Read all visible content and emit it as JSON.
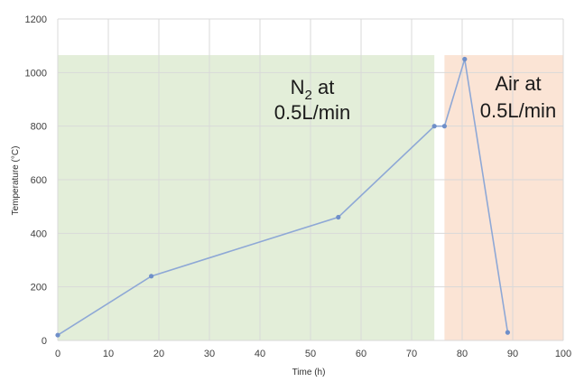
{
  "chart_data": {
    "type": "line",
    "title": "",
    "xlabel": "Time (h)",
    "ylabel": "Temperature (°C)",
    "xlim": [
      0,
      100
    ],
    "ylim": [
      0,
      1200
    ],
    "xticks": [
      0,
      10,
      20,
      30,
      40,
      50,
      60,
      70,
      80,
      90,
      100
    ],
    "yticks": [
      0,
      200,
      400,
      600,
      800,
      1000,
      1200
    ],
    "grid": true,
    "legend": "none",
    "colors": {
      "line": "#8ea8d6",
      "marker": "#6f8fc9",
      "n2_region": "#e3eed9",
      "air_region": "#fbe4d5",
      "grid": "#d9d9d9"
    },
    "series": [
      {
        "x": [
          0,
          18.5,
          55.5,
          74.5,
          76.5,
          80.5,
          89
        ],
        "y": [
          20,
          240,
          460,
          800,
          800,
          1050,
          30
        ]
      }
    ],
    "regions": [
      {
        "x_start": 0,
        "x_end": 74.5,
        "y_top": 1065,
        "color": "#e3eed9",
        "label_main": "N",
        "label_sub": "2",
        "label_rest": " at",
        "label_line2": "0.5L/min"
      },
      {
        "x_start": 76.5,
        "x_end": 100,
        "y_top": 1065,
        "color": "#fbe4d5",
        "label_main": "Air at",
        "label_line2": "0.5L/min"
      }
    ]
  }
}
